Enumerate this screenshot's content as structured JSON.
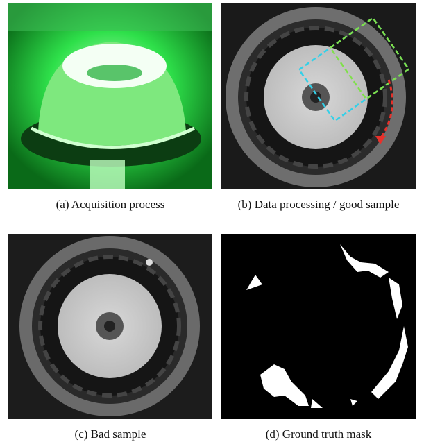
{
  "figure": {
    "panels": [
      {
        "caption": "(a) Acquisition process"
      },
      {
        "caption": "(b) Data processing / good sample"
      },
      {
        "caption": "(c) Bad sample"
      },
      {
        "caption": "(d) Ground truth mask"
      }
    ]
  }
}
